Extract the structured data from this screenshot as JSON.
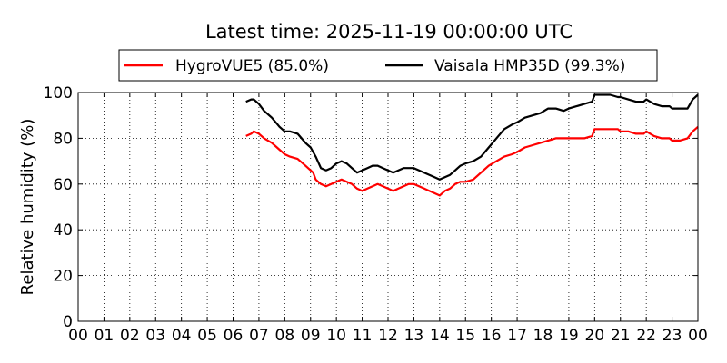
{
  "chart_data": {
    "type": "line",
    "title": "Latest time: 2025-11-19 00:00:00 UTC",
    "xlabel": "",
    "ylabel": "Relative humidity (%)",
    "xlim": [
      0,
      24
    ],
    "ylim": [
      0,
      100
    ],
    "grid": true,
    "legend_position": "top-center",
    "x_ticks": [
      "00",
      "01",
      "02",
      "03",
      "04",
      "05",
      "06",
      "07",
      "08",
      "09",
      "10",
      "11",
      "12",
      "13",
      "14",
      "15",
      "16",
      "17",
      "18",
      "19",
      "20",
      "21",
      "22",
      "23",
      "00"
    ],
    "y_ticks": [
      0,
      20,
      40,
      60,
      80,
      100
    ],
    "series": [
      {
        "name": "HygroVUE5 (85.0%)",
        "color": "#ff0000",
        "x": [
          6.5,
          6.7,
          6.8,
          7.0,
          7.2,
          7.5,
          7.8,
          8.0,
          8.2,
          8.5,
          8.8,
          9.0,
          9.1,
          9.2,
          9.4,
          9.6,
          9.8,
          10.0,
          10.2,
          10.4,
          10.6,
          10.8,
          11.0,
          11.2,
          11.4,
          11.6,
          11.8,
          12.0,
          12.2,
          12.4,
          12.6,
          12.8,
          13.0,
          13.2,
          13.4,
          13.6,
          13.8,
          14.0,
          14.2,
          14.4,
          14.6,
          14.8,
          15.0,
          15.3,
          15.6,
          15.9,
          16.2,
          16.5,
          16.8,
          17.0,
          17.3,
          17.6,
          17.9,
          18.2,
          18.5,
          18.8,
          19.0,
          19.3,
          19.6,
          19.9,
          20.0,
          20.3,
          20.6,
          20.9,
          21.0,
          21.3,
          21.6,
          21.9,
          22.0,
          22.3,
          22.6,
          22.9,
          23.0,
          23.3,
          23.6,
          23.8,
          24.0
        ],
        "y": [
          81,
          82,
          83,
          82,
          80,
          78,
          75,
          73,
          72,
          71,
          68,
          66,
          65,
          62,
          60,
          59,
          60,
          61,
          62,
          61,
          60,
          58,
          57,
          58,
          59,
          60,
          59,
          58,
          57,
          58,
          59,
          60,
          60,
          59,
          58,
          57,
          56,
          55,
          57,
          58,
          60,
          61,
          61,
          62,
          65,
          68,
          70,
          72,
          73,
          74,
          76,
          77,
          78,
          79,
          80,
          80,
          80,
          80,
          80,
          81,
          84,
          84,
          84,
          84,
          83,
          83,
          82,
          82,
          83,
          81,
          80,
          80,
          79,
          79,
          80,
          83,
          85
        ]
      },
      {
        "name": "Vaisala HMP35D (99.3%)",
        "color": "#000000",
        "x": [
          6.5,
          6.7,
          6.8,
          7.0,
          7.2,
          7.5,
          7.8,
          8.0,
          8.2,
          8.5,
          8.8,
          9.0,
          9.1,
          9.2,
          9.4,
          9.6,
          9.8,
          10.0,
          10.2,
          10.4,
          10.6,
          10.8,
          11.0,
          11.2,
          11.4,
          11.6,
          11.8,
          12.0,
          12.2,
          12.4,
          12.6,
          12.8,
          13.0,
          13.2,
          13.4,
          13.6,
          13.8,
          14.0,
          14.2,
          14.4,
          14.6,
          14.8,
          15.0,
          15.3,
          15.6,
          15.9,
          16.2,
          16.5,
          16.8,
          17.0,
          17.3,
          17.6,
          17.9,
          18.2,
          18.5,
          18.8,
          19.0,
          19.3,
          19.6,
          19.9,
          20.0,
          20.3,
          20.6,
          20.9,
          21.0,
          21.3,
          21.6,
          21.9,
          22.0,
          22.3,
          22.6,
          22.9,
          23.0,
          23.3,
          23.6,
          23.8,
          24.0
        ],
        "y": [
          96,
          97,
          97,
          95,
          92,
          89,
          85,
          83,
          83,
          82,
          78,
          76,
          74,
          72,
          67,
          66,
          67,
          69,
          70,
          69,
          67,
          65,
          66,
          67,
          68,
          68,
          67,
          66,
          65,
          66,
          67,
          67,
          67,
          66,
          65,
          64,
          63,
          62,
          63,
          64,
          66,
          68,
          69,
          70,
          72,
          76,
          80,
          84,
          86,
          87,
          89,
          90,
          91,
          93,
          93,
          92,
          93,
          94,
          95,
          96,
          99,
          99,
          99,
          98,
          98,
          97,
          96,
          96,
          97,
          95,
          94,
          94,
          93,
          93,
          93,
          97,
          99
        ]
      }
    ]
  }
}
